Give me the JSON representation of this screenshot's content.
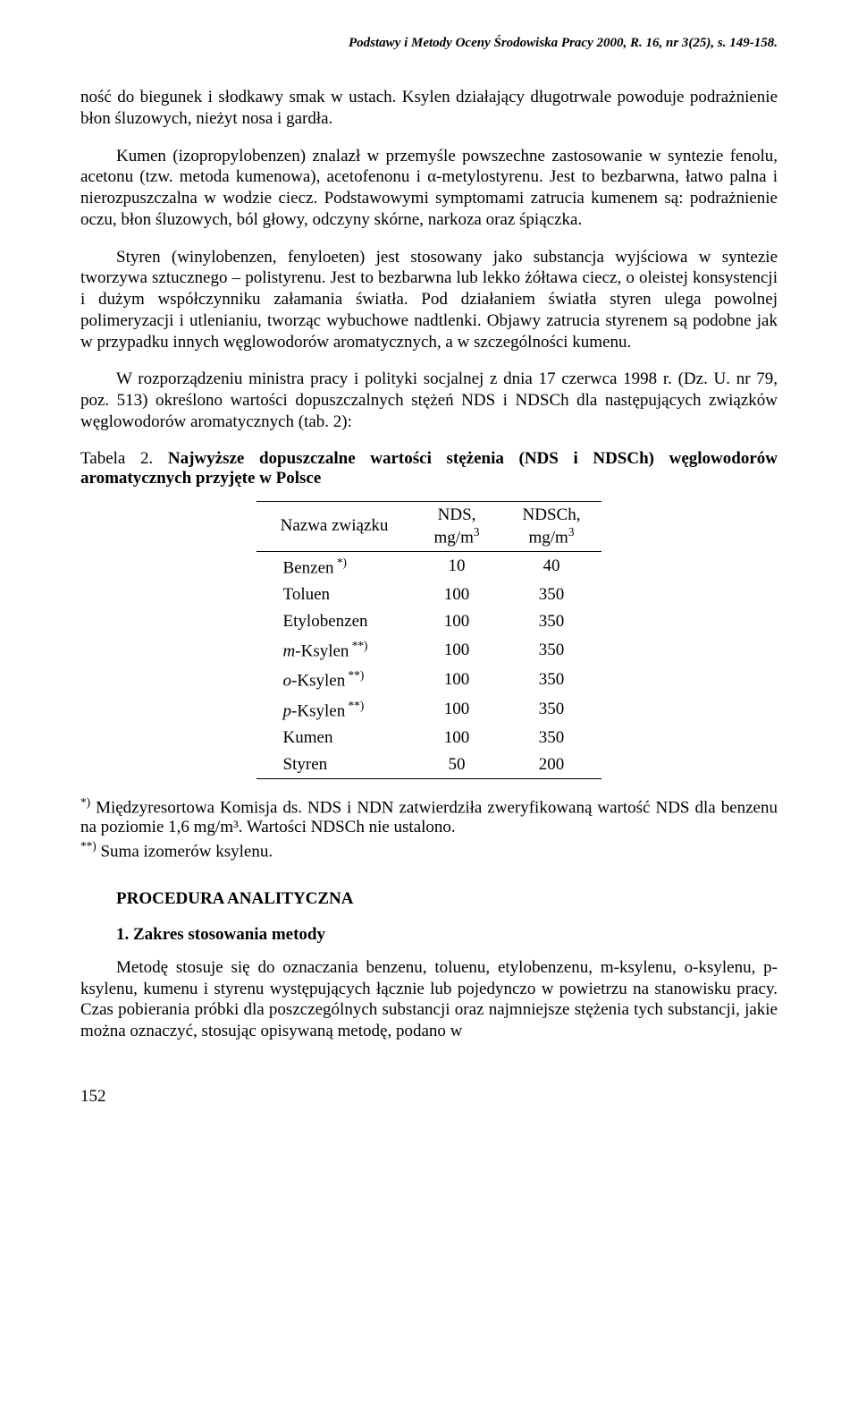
{
  "header": "Podstawy i Metody Oceny Środowiska Pracy 2000, R. 16, nr 3(25), s. 149-158.",
  "p1": "ność do biegunek i słodkawy smak w ustach. Ksylen działający długotrwale powoduje podrażnienie błon śluzowych, nieżyt nosa i gardła.",
  "p2": "Kumen (izopropylobenzen) znalazł w przemyśle powszechne zastosowanie w syntezie fenolu, acetonu (tzw. metoda kumenowa), acetofenonu i α-metylostyrenu. Jest to bezbarwna, łatwo palna i nierozpuszczalna w wodzie ciecz. Podstawowymi symptomami zatrucia kumenem są: podrażnienie oczu, błon śluzowych, ból głowy, odczyny skórne, narkoza oraz śpiączka.",
  "p3": "Styren (winylobenzen, fenyloeten) jest stosowany jako substancja wyjściowa w syntezie tworzywa sztucznego – polistyrenu. Jest to bezbarwna lub lekko żółtawa ciecz, o oleistej konsystencji i dużym współczynniku załamania światła. Pod działaniem światła styren ulega powolnej polimeryzacji i utlenianiu, tworząc wybuchowe nadtlenki. Objawy zatrucia styrenem są podobne jak w przypadku innych węglowodorów aromatycznych, a w szczególności kumenu.",
  "p4": "W rozporządzeniu ministra pracy i polityki socjalnej z dnia 17 czerwca 1998 r. (Dz. U. nr 79, poz. 513) określono wartości dopuszczalnych stężeń NDS i NDSCh dla następujących związków węglowodorów aromatycznych (tab. 2):",
  "table_caption_lead": "Tabela 2.",
  "table_caption_bold": " Najwyższe dopuszczalne wartości stężenia (NDS i NDSCh) węglowodorów aromatycznych przyjęte w Polsce",
  "table": {
    "head": [
      "Nazwa związku",
      "NDS,\nmg/m³",
      "NDSCh,\nmg/m³"
    ],
    "rows": [
      [
        "Benzen *)",
        "10",
        "40"
      ],
      [
        "Toluen",
        "100",
        "350"
      ],
      [
        "Etylobenzen",
        "100",
        "350"
      ],
      [
        "m-Ksylen **)",
        "100",
        "350"
      ],
      [
        "o-Ksylen **)",
        "100",
        "350"
      ],
      [
        "p-Ksylen **)",
        "100",
        "350"
      ],
      [
        "Kumen",
        "100",
        "350"
      ],
      [
        "Styren",
        "50",
        "200"
      ]
    ]
  },
  "fn1_sup": "*)",
  "fn1": " Międzyresortowa Komisja ds. NDS i NDN zatwierdziła zweryfikowaną wartość NDS dla benzenu na poziomie 1,6 mg/m³. Wartości NDSCh nie ustalono.",
  "fn2_sup": "**)",
  "fn2": " Suma izomerów ksylenu.",
  "section": "PROCEDURA ANALITYCZNA",
  "subsection": "1. Zakres stosowania metody",
  "p5": "Metodę stosuje się do oznaczania benzenu, toluenu, etylobenzenu, m-ksylenu, o-ksylenu, p-ksylenu, kumenu i styrenu występujących łącznie lub pojedynczo w powietrzu na stanowisku pracy. Czas pobierania próbki dla poszczególnych substancji oraz najmniejsze stężenia tych substancji, jakie można oznaczyć, stosując opisywaną metodę, podano w",
  "page_num": "152"
}
